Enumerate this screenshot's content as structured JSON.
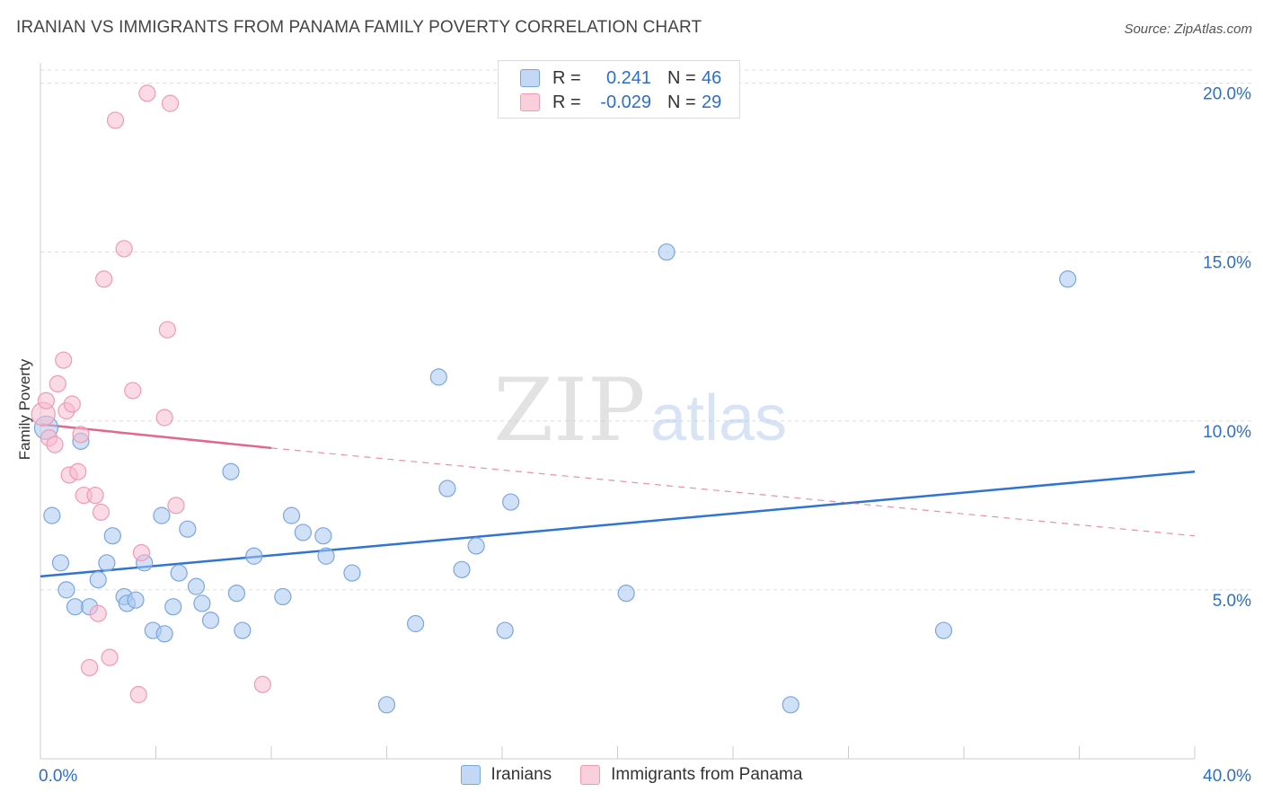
{
  "header": {
    "title": "IRANIAN VS IMMIGRANTS FROM PANAMA FAMILY POVERTY CORRELATION CHART",
    "source": "Source: ZipAtlas.com"
  },
  "legend_top": {
    "rows": [
      {
        "r_label": "R =",
        "r_value": "0.241",
        "n_label": "N =",
        "n_value": "46"
      },
      {
        "r_label": "R =",
        "r_value": "-0.029",
        "n_label": "N =",
        "n_value": "29"
      }
    ]
  },
  "legend_bottom": {
    "items": [
      {
        "label": "Iranians"
      },
      {
        "label": "Immigrants from Panama"
      }
    ]
  },
  "colors": {
    "blue_fill": "#a9c8f0",
    "blue_stroke": "#7aa6e0",
    "blue_line": "#2f74d0",
    "pink_fill": "#f6bccd",
    "pink_stroke": "#ee9bb5",
    "pink_line": "#e06890",
    "grid": "#dddddd",
    "axis_text": "#2c6fc9",
    "watermark": "#c9c9c9"
  },
  "watermark": {
    "zip": "ZIP",
    "atlas": "atlas"
  },
  "chart_data": {
    "type": "scatter",
    "title": "IRANIAN VS IMMIGRANTS FROM PANAMA FAMILY POVERTY CORRELATION CHART",
    "xlabel": "",
    "ylabel": "Family Poverty",
    "xlim": [
      0,
      40
    ],
    "ylim": [
      0,
      20.6
    ],
    "x_tick_labels": [
      "0.0%",
      "40.0%"
    ],
    "y_ticks": [
      5,
      10,
      15,
      20
    ],
    "y_tick_labels": [
      "5.0%",
      "10.0%",
      "15.0%",
      "20.0%"
    ],
    "grid": true,
    "series": [
      {
        "name": "Iranians",
        "color": "#a9c8f0",
        "r": 0.241,
        "n": 46,
        "trend": {
          "x": [
            0,
            40
          ],
          "y": [
            5.4,
            8.5
          ],
          "style": "solid"
        },
        "points": [
          {
            "x": 0.2,
            "y": 9.8,
            "big": true
          },
          {
            "x": 0.4,
            "y": 7.2
          },
          {
            "x": 0.7,
            "y": 5.8
          },
          {
            "x": 0.9,
            "y": 5.0
          },
          {
            "x": 1.2,
            "y": 4.5
          },
          {
            "x": 1.4,
            "y": 9.4
          },
          {
            "x": 1.7,
            "y": 4.5
          },
          {
            "x": 2.0,
            "y": 5.3
          },
          {
            "x": 2.3,
            "y": 5.8
          },
          {
            "x": 2.5,
            "y": 6.6
          },
          {
            "x": 2.9,
            "y": 4.8
          },
          {
            "x": 3.0,
            "y": 4.6
          },
          {
            "x": 3.3,
            "y": 4.7
          },
          {
            "x": 3.6,
            "y": 5.8
          },
          {
            "x": 3.9,
            "y": 3.8
          },
          {
            "x": 4.2,
            "y": 7.2
          },
          {
            "x": 4.3,
            "y": 3.7
          },
          {
            "x": 4.6,
            "y": 4.5
          },
          {
            "x": 4.8,
            "y": 5.5
          },
          {
            "x": 5.1,
            "y": 6.8
          },
          {
            "x": 5.4,
            "y": 5.1
          },
          {
            "x": 5.6,
            "y": 4.6
          },
          {
            "x": 5.9,
            "y": 4.1
          },
          {
            "x": 6.6,
            "y": 8.5
          },
          {
            "x": 6.8,
            "y": 4.9
          },
          {
            "x": 7.0,
            "y": 3.8
          },
          {
            "x": 7.4,
            "y": 6.0
          },
          {
            "x": 8.4,
            "y": 4.8
          },
          {
            "x": 8.7,
            "y": 7.2
          },
          {
            "x": 9.1,
            "y": 6.7
          },
          {
            "x": 9.8,
            "y": 6.6
          },
          {
            "x": 9.9,
            "y": 6.0
          },
          {
            "x": 10.8,
            "y": 5.5
          },
          {
            "x": 13.0,
            "y": 4.0
          },
          {
            "x": 13.8,
            "y": 11.3
          },
          {
            "x": 14.1,
            "y": 8.0
          },
          {
            "x": 14.6,
            "y": 5.6
          },
          {
            "x": 15.1,
            "y": 6.3
          },
          {
            "x": 16.1,
            "y": 3.8
          },
          {
            "x": 16.3,
            "y": 7.6
          },
          {
            "x": 20.3,
            "y": 4.9
          },
          {
            "x": 21.7,
            "y": 15.0
          },
          {
            "x": 12.0,
            "y": 1.6
          },
          {
            "x": 26.0,
            "y": 1.6
          },
          {
            "x": 31.3,
            "y": 3.8
          },
          {
            "x": 35.6,
            "y": 14.2
          }
        ]
      },
      {
        "name": "Immigrants from Panama",
        "color": "#f6bccd",
        "r": -0.029,
        "n": 29,
        "trend": {
          "x": [
            0,
            8
          ],
          "y": [
            9.9,
            9.2
          ],
          "style": "solid",
          "dashed_extension": {
            "x": [
              8,
              40
            ],
            "y": [
              9.2,
              6.6
            ]
          }
        },
        "points": [
          {
            "x": 0.1,
            "y": 10.2,
            "big": true
          },
          {
            "x": 0.3,
            "y": 9.5
          },
          {
            "x": 0.5,
            "y": 9.3
          },
          {
            "x": 0.6,
            "y": 11.1
          },
          {
            "x": 0.8,
            "y": 11.8
          },
          {
            "x": 0.9,
            "y": 10.3
          },
          {
            "x": 1.0,
            "y": 8.4
          },
          {
            "x": 1.1,
            "y": 10.5
          },
          {
            "x": 1.3,
            "y": 8.5
          },
          {
            "x": 1.4,
            "y": 9.6
          },
          {
            "x": 1.5,
            "y": 7.8
          },
          {
            "x": 1.7,
            "y": 2.7
          },
          {
            "x": 1.9,
            "y": 7.8
          },
          {
            "x": 2.0,
            "y": 4.3
          },
          {
            "x": 2.1,
            "y": 7.3
          },
          {
            "x": 2.2,
            "y": 14.2
          },
          {
            "x": 2.4,
            "y": 3.0
          },
          {
            "x": 2.6,
            "y": 18.9
          },
          {
            "x": 2.9,
            "y": 15.1
          },
          {
            "x": 3.2,
            "y": 10.9
          },
          {
            "x": 3.4,
            "y": 1.9
          },
          {
            "x": 3.5,
            "y": 6.1
          },
          {
            "x": 3.7,
            "y": 19.7
          },
          {
            "x": 4.3,
            "y": 10.1
          },
          {
            "x": 4.4,
            "y": 12.7
          },
          {
            "x": 4.5,
            "y": 19.4
          },
          {
            "x": 4.7,
            "y": 7.5
          },
          {
            "x": 7.7,
            "y": 2.2
          },
          {
            "x": 0.2,
            "y": 10.6
          }
        ]
      }
    ]
  }
}
